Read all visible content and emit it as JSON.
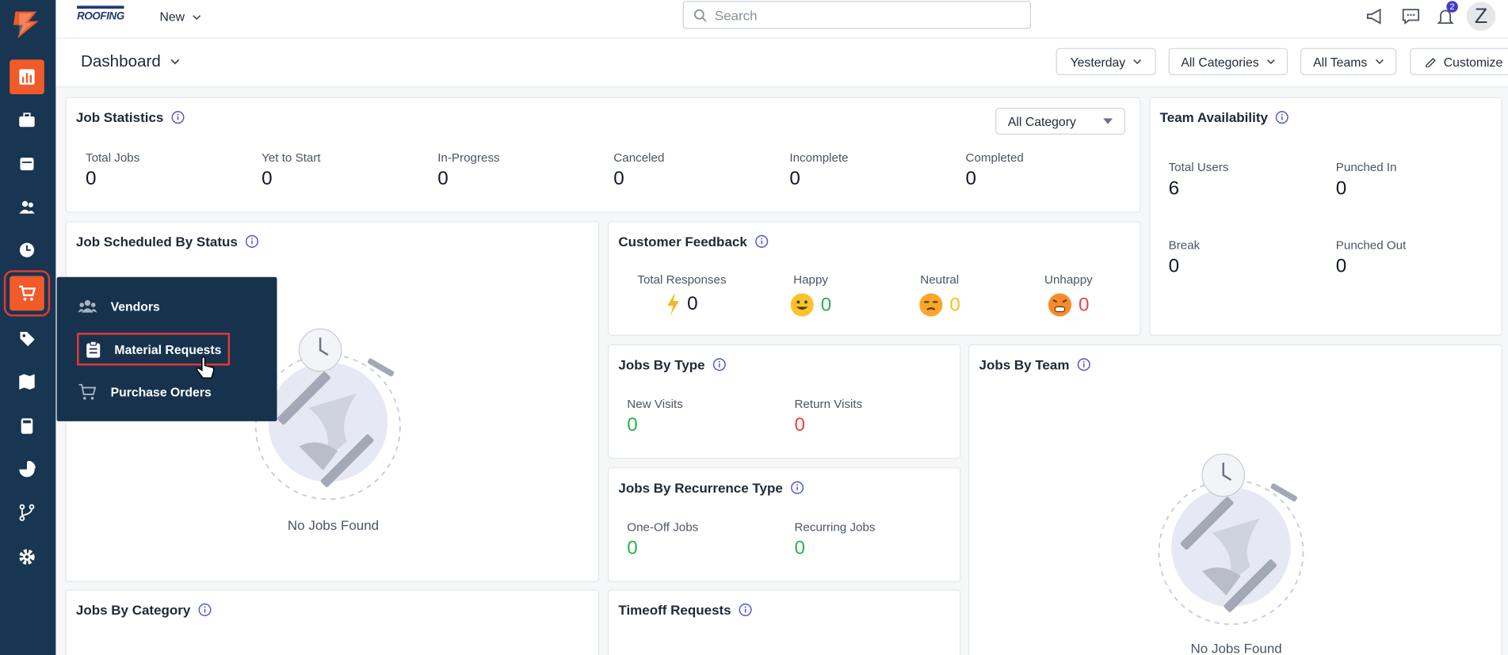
{
  "header": {
    "logo": "ROOFING",
    "new_button": "New",
    "search_placeholder": "Search",
    "notification_count": 2,
    "avatar_initial": "Z"
  },
  "flyout_menu": {
    "items": [
      "Vendors",
      "Material Requests",
      "Purchase Orders"
    ]
  },
  "toolbar": {
    "title": "Dashboard",
    "filters": [
      "Yesterday",
      "All Categories",
      "All Teams"
    ],
    "customize": "Customize"
  },
  "job_statistics": {
    "title": "Job Statistics",
    "category_filter": "All Category",
    "stats": [
      {
        "label": "Total Jobs",
        "value": 0
      },
      {
        "label": "Yet to Start",
        "value": 0
      },
      {
        "label": "In-Progress",
        "value": 0
      },
      {
        "label": "Canceled",
        "value": 0
      },
      {
        "label": "Incomplete",
        "value": 0
      },
      {
        "label": "Completed",
        "value": 0
      }
    ]
  },
  "team_availability": {
    "title": "Team Availability",
    "stats": [
      {
        "label": "Total Users",
        "value": 6
      },
      {
        "label": "Punched In",
        "value": 0
      },
      {
        "label": "Break",
        "value": 0
      },
      {
        "label": "Punched Out",
        "value": 0
      }
    ]
  },
  "job_scheduled_by_status": {
    "title": "Job Scheduled By Status",
    "empty_text": "No Jobs Found"
  },
  "customer_feedback": {
    "title": "Customer Feedback",
    "stats": [
      {
        "label": "Total Responses",
        "value": 0
      },
      {
        "label": "Happy",
        "value": 0
      },
      {
        "label": "Neutral",
        "value": 0
      },
      {
        "label": "Unhappy",
        "value": 0
      }
    ]
  },
  "jobs_by_type": {
    "title": "Jobs By Type",
    "stats": [
      {
        "label": "New Visits",
        "value": 0
      },
      {
        "label": "Return Visits",
        "value": 0
      }
    ]
  },
  "jobs_by_recurrence_type": {
    "title": "Jobs By Recurrence Type",
    "stats": [
      {
        "label": "One-Off Jobs",
        "value": 0
      },
      {
        "label": "Recurring Jobs",
        "value": 0
      }
    ]
  },
  "jobs_by_team": {
    "title": "Jobs By Team",
    "empty_text": "No Jobs Found"
  },
  "jobs_by_category": {
    "title": "Jobs By Category"
  },
  "timeoff_requests": {
    "title": "Timeoff Requests"
  }
}
